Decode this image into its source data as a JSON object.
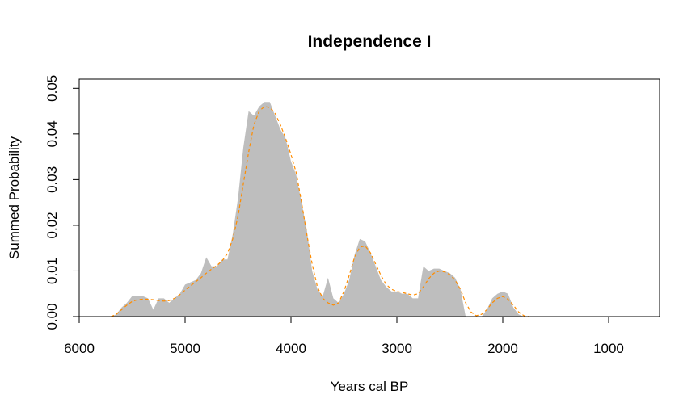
{
  "chart_data": {
    "type": "area",
    "title": "Independence I",
    "x_label": "Years cal BP",
    "y_label": "Summed Probability",
    "x": [
      5700,
      5650,
      5600,
      5550,
      5500,
      5450,
      5400,
      5350,
      5300,
      5250,
      5200,
      5150,
      5100,
      5050,
      5000,
      4950,
      4900,
      4850,
      4800,
      4750,
      4700,
      4650,
      4600,
      4550,
      4500,
      4450,
      4400,
      4350,
      4300,
      4250,
      4200,
      4150,
      4100,
      4050,
      4000,
      3950,
      3900,
      3850,
      3800,
      3750,
      3700,
      3650,
      3600,
      3550,
      3500,
      3450,
      3400,
      3350,
      3300,
      3250,
      3200,
      3150,
      3100,
      3050,
      3000,
      2950,
      2900,
      2850,
      2800,
      2750,
      2700,
      2650,
      2600,
      2550,
      2500,
      2450,
      2400,
      2350,
      2300,
      2250,
      2200,
      2150,
      2100,
      2050,
      2000,
      1950,
      1900,
      1850,
      1800,
      1750
    ],
    "series": [
      {
        "kind": "area",
        "color": "#bebebe",
        "values": [
          0,
          0.0005,
          0.002,
          0.003,
          0.0045,
          0.0045,
          0.0045,
          0.004,
          0.0015,
          0.004,
          0.004,
          0.003,
          0.004,
          0.005,
          0.007,
          0.0075,
          0.008,
          0.0095,
          0.013,
          0.011,
          0.011,
          0.0125,
          0.0125,
          0.018,
          0.026,
          0.037,
          0.045,
          0.044,
          0.046,
          0.047,
          0.047,
          0.044,
          0.041,
          0.039,
          0.034,
          0.031,
          0.025,
          0.019,
          0.01,
          0.006,
          0.0045,
          0.0085,
          0.004,
          0.003,
          0.005,
          0.008,
          0.0135,
          0.017,
          0.0165,
          0.014,
          0.011,
          0.008,
          0.0065,
          0.0055,
          0.0055,
          0.005,
          0.005,
          0.004,
          0.004,
          0.011,
          0.01,
          0.0105,
          0.0105,
          0.01,
          0.0095,
          0.0085,
          0.006,
          0,
          0,
          0,
          0,
          0.0015,
          0.004,
          0.005,
          0.0055,
          0.005,
          0.002,
          0.0005,
          0,
          0
        ]
      },
      {
        "kind": "line",
        "dashed": true,
        "color": "#ff8c00",
        "values": [
          0,
          0.0005,
          0.0015,
          0.0025,
          0.0033,
          0.0037,
          0.0038,
          0.0038,
          0.0037,
          0.0035,
          0.0034,
          0.0035,
          0.004,
          0.0048,
          0.0058,
          0.0067,
          0.0076,
          0.0085,
          0.0095,
          0.0104,
          0.0112,
          0.0122,
          0.0138,
          0.017,
          0.022,
          0.029,
          0.036,
          0.042,
          0.045,
          0.046,
          0.0458,
          0.0445,
          0.042,
          0.039,
          0.0355,
          0.0315,
          0.025,
          0.018,
          0.0115,
          0.0065,
          0.004,
          0.003,
          0.0025,
          0.003,
          0.0055,
          0.009,
          0.013,
          0.0152,
          0.0155,
          0.014,
          0.0115,
          0.009,
          0.007,
          0.006,
          0.0055,
          0.0053,
          0.005,
          0.0047,
          0.005,
          0.0065,
          0.0083,
          0.0095,
          0.01,
          0.0098,
          0.0092,
          0.008,
          0.006,
          0.003,
          0.001,
          0.0002,
          0.0005,
          0.0015,
          0.003,
          0.004,
          0.0044,
          0.0038,
          0.0025,
          0.001,
          0.0002,
          0
        ]
      }
    ],
    "xlim": [
      6000,
      519
    ],
    "xticks": [
      6000,
      5000,
      4000,
      3000,
      2000,
      1000
    ],
    "ylim": [
      0,
      0.052
    ],
    "yticks": [
      {
        "value": 0,
        "label": "0.00"
      },
      {
        "value": 0.01,
        "label": "0.01"
      },
      {
        "value": 0.02,
        "label": "0.02"
      },
      {
        "value": 0.03,
        "label": "0.03"
      },
      {
        "value": 0.04,
        "label": "0.04"
      },
      {
        "value": 0.05,
        "label": "0.05"
      }
    ]
  }
}
